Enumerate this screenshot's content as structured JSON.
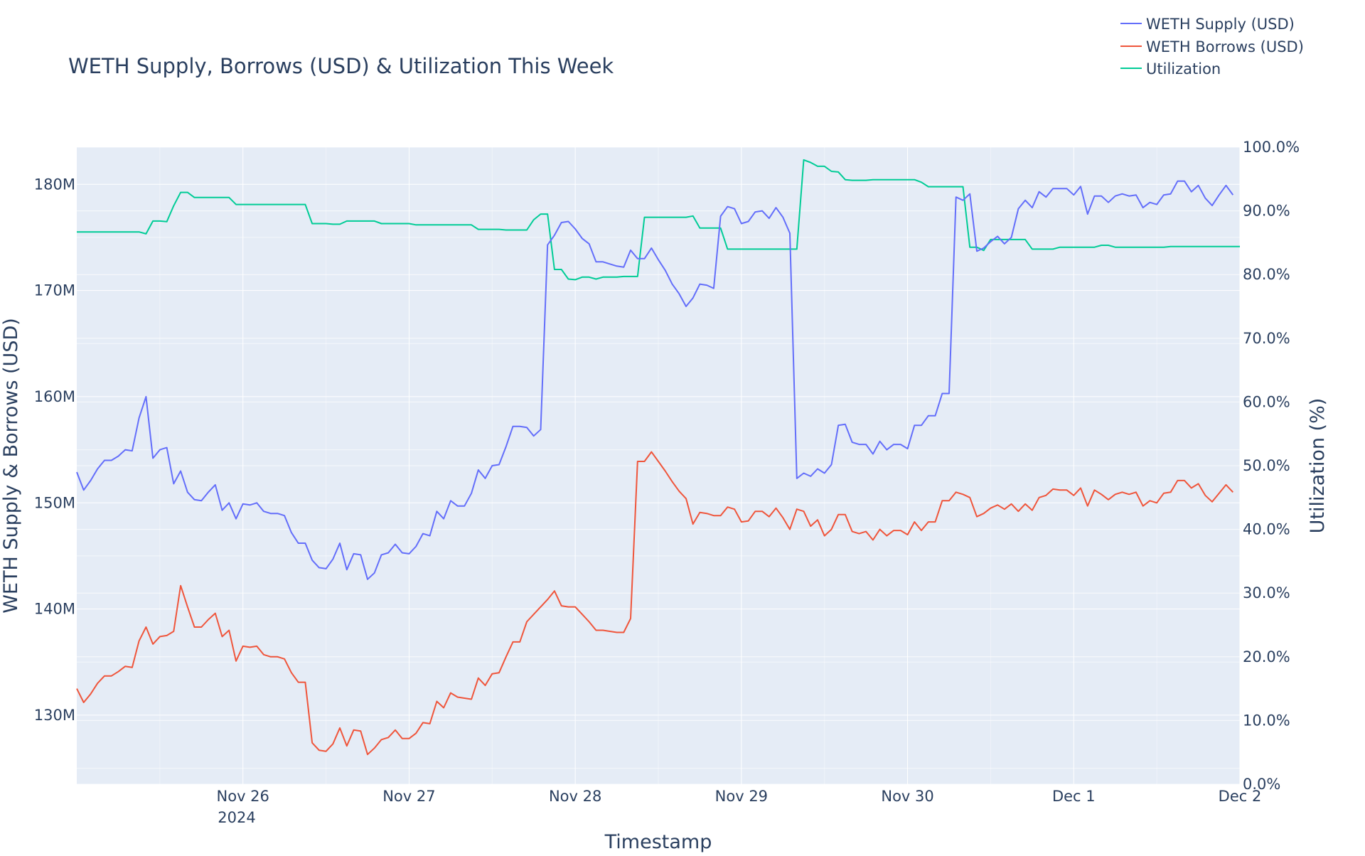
{
  "chart_data": {
    "type": "line",
    "title": "WETH Supply, Borrows (USD) & Utilization This Week",
    "xlabel": "Timestamp",
    "ylabel_left": "WETH Supply & Borrows (USD)",
    "ylabel_right": "Utilization (%)",
    "x_start": "2024-11-25T00:00",
    "x_step_hours": 1,
    "xlim": [
      "2024-11-25T00:00",
      "2024-12-02T00:00"
    ],
    "x_tick_labels": [
      "Nov 26",
      "Nov 27",
      "Nov 28",
      "Nov 29",
      "Nov 30",
      "Dec 1",
      "Dec 2"
    ],
    "x_year_label": "2024",
    "ylim_left": [
      123.5,
      183.5
    ],
    "y_left_ticks": [
      130,
      140,
      150,
      160,
      170,
      180
    ],
    "y_left_tick_labels": [
      "130M",
      "140M",
      "150M",
      "160M",
      "170M",
      "180M"
    ],
    "ylim_right": [
      0,
      100
    ],
    "y_right_ticks": [
      0,
      10,
      20,
      30,
      40,
      50,
      60,
      70,
      80,
      90,
      100
    ],
    "y_right_tick_labels": [
      "0.0%",
      "10.0%",
      "20.0%",
      "30.0%",
      "40.0%",
      "50.0%",
      "60.0%",
      "70.0%",
      "80.0%",
      "90.0%",
      "100.0%"
    ],
    "grid": true,
    "legend_position": "top-right",
    "series": [
      {
        "name": "WETH Supply (USD)",
        "color": "#636efa",
        "axis": "left",
        "unit": "M USD",
        "values": [
          152.9,
          151.2,
          152.1,
          153.2,
          154.0,
          154.0,
          154.4,
          155.0,
          154.9,
          158.0,
          160.0,
          154.2,
          155.0,
          155.2,
          151.8,
          153.0,
          151.0,
          150.3,
          150.2,
          151.0,
          151.7,
          149.3,
          150.0,
          148.5,
          149.9,
          149.8,
          150.0,
          149.2,
          149.0,
          149.0,
          148.8,
          147.2,
          146.2,
          146.2,
          144.6,
          143.9,
          143.8,
          144.7,
          146.2,
          143.7,
          145.2,
          145.1,
          142.8,
          143.4,
          145.1,
          145.3,
          146.1,
          145.3,
          145.2,
          145.9,
          147.1,
          146.9,
          149.2,
          148.5,
          150.2,
          149.7,
          149.7,
          150.9,
          153.1,
          152.3,
          153.5,
          153.6,
          155.3,
          157.2,
          157.2,
          157.1,
          156.3,
          156.9,
          174.3,
          175.2,
          176.4,
          176.5,
          175.8,
          174.9,
          174.4,
          172.7,
          172.7,
          172.5,
          172.3,
          172.2,
          173.8,
          173.0,
          173.0,
          174.0,
          172.9,
          171.9,
          170.6,
          169.7,
          168.5,
          169.3,
          170.6,
          170.5,
          170.2,
          177.0,
          177.9,
          177.7,
          176.3,
          176.5,
          177.4,
          177.5,
          176.8,
          177.8,
          176.9,
          175.4,
          152.3,
          152.8,
          152.5,
          153.2,
          152.8,
          153.6,
          157.3,
          157.4,
          155.7,
          155.5,
          155.5,
          154.6,
          155.8,
          155.0,
          155.5,
          155.5,
          155.1,
          157.3,
          157.3,
          158.2,
          158.2,
          160.3,
          160.3,
          178.8,
          178.5,
          179.1,
          173.7,
          174.0,
          174.6,
          175.1,
          174.4,
          175.0,
          177.7,
          178.5,
          177.8,
          179.3,
          178.8,
          179.6,
          179.6,
          179.6,
          179.0,
          179.8,
          177.2,
          178.9,
          178.9,
          178.3,
          178.9,
          179.1,
          178.9,
          179.0,
          177.8,
          178.3,
          178.1,
          179.0,
          179.1,
          180.3,
          180.3,
          179.3,
          179.9,
          178.7,
          178.0,
          179.0,
          179.9,
          179.0
        ]
      },
      {
        "name": "WETH Borrows (USD)",
        "color": "#ef553b",
        "axis": "left",
        "unit": "M USD",
        "values": [
          132.5,
          131.2,
          132.0,
          133.0,
          133.7,
          133.7,
          134.1,
          134.6,
          134.5,
          137.0,
          138.3,
          136.7,
          137.4,
          137.5,
          137.9,
          142.2,
          140.2,
          138.3,
          138.3,
          139.0,
          139.6,
          137.4,
          138.0,
          135.1,
          136.5,
          136.4,
          136.5,
          135.7,
          135.5,
          135.5,
          135.3,
          134.0,
          133.1,
          133.1,
          127.4,
          126.7,
          126.6,
          127.3,
          128.8,
          127.1,
          128.6,
          128.5,
          126.3,
          126.9,
          127.7,
          127.9,
          128.6,
          127.8,
          127.8,
          128.3,
          129.3,
          129.2,
          131.3,
          130.7,
          132.1,
          131.7,
          131.6,
          131.5,
          133.5,
          132.8,
          133.9,
          134.0,
          135.5,
          136.9,
          136.9,
          138.8,
          139.5,
          140.2,
          140.9,
          141.7,
          140.3,
          140.2,
          140.2,
          139.5,
          138.8,
          138.0,
          138.0,
          137.9,
          137.8,
          137.8,
          139.1,
          153.9,
          153.9,
          154.8,
          153.9,
          153.0,
          152.0,
          151.1,
          150.4,
          148.0,
          149.1,
          149.0,
          148.8,
          148.8,
          149.6,
          149.4,
          148.2,
          148.3,
          149.2,
          149.2,
          148.7,
          149.5,
          148.6,
          147.5,
          149.4,
          149.2,
          147.8,
          148.4,
          146.9,
          147.5,
          148.9,
          148.9,
          147.3,
          147.1,
          147.3,
          146.5,
          147.5,
          146.9,
          147.4,
          147.4,
          147.0,
          148.2,
          147.4,
          148.2,
          148.2,
          150.2,
          150.2,
          151.0,
          150.8,
          150.5,
          148.7,
          149.0,
          149.5,
          149.8,
          149.4,
          149.9,
          149.2,
          149.9,
          149.3,
          150.5,
          150.7,
          151.3,
          151.2,
          151.2,
          150.7,
          151.4,
          149.7,
          151.2,
          150.8,
          150.3,
          150.8,
          151.0,
          150.8,
          151.0,
          149.7,
          150.2,
          150.0,
          150.9,
          151.0,
          152.1,
          152.1,
          151.4,
          151.8,
          150.7,
          150.1,
          150.9,
          151.7,
          151.0
        ]
      },
      {
        "name": "Utilization",
        "color": "#00cc96",
        "axis": "right",
        "unit": "%",
        "values": [
          86.7,
          86.7,
          86.7,
          86.7,
          86.7,
          86.7,
          86.7,
          86.7,
          86.7,
          86.7,
          86.4,
          88.4,
          88.4,
          88.3,
          90.8,
          92.9,
          92.9,
          92.1,
          92.1,
          92.1,
          92.1,
          92.1,
          92.1,
          91.0,
          91.0,
          91.0,
          91.0,
          91.0,
          91.0,
          91.0,
          91.0,
          91.0,
          91.0,
          91.0,
          88.0,
          88.0,
          88.0,
          87.9,
          87.9,
          88.4,
          88.4,
          88.4,
          88.4,
          88.4,
          88.0,
          88.0,
          88.0,
          88.0,
          88.0,
          87.8,
          87.8,
          87.8,
          87.8,
          87.8,
          87.8,
          87.8,
          87.8,
          87.8,
          87.1,
          87.1,
          87.1,
          87.1,
          87.0,
          87.0,
          87.0,
          87.0,
          88.6,
          89.5,
          89.5,
          80.8,
          80.8,
          79.3,
          79.2,
          79.6,
          79.6,
          79.3,
          79.6,
          79.6,
          79.6,
          79.7,
          79.7,
          79.7,
          89.0,
          89.0,
          89.0,
          89.0,
          89.0,
          89.0,
          89.0,
          89.2,
          87.3,
          87.3,
          87.3,
          87.3,
          84.0,
          84.0,
          84.0,
          84.0,
          84.0,
          84.0,
          84.0,
          84.0,
          84.0,
          84.0,
          84.0,
          98.0,
          97.6,
          97.0,
          97.0,
          96.2,
          96.1,
          94.9,
          94.8,
          94.8,
          94.8,
          94.9,
          94.9,
          94.9,
          94.9,
          94.9,
          94.9,
          94.9,
          94.5,
          93.8,
          93.8,
          93.8,
          93.8,
          93.8,
          93.8,
          84.3,
          84.3,
          83.8,
          85.5,
          85.5,
          85.5,
          85.5,
          85.5,
          85.5,
          84.0,
          84.0,
          84.0,
          84.0,
          84.3,
          84.3,
          84.3,
          84.3,
          84.3,
          84.3,
          84.6,
          84.6,
          84.3,
          84.3,
          84.3,
          84.3,
          84.3,
          84.3,
          84.3,
          84.3,
          84.4,
          84.4,
          84.4,
          84.4,
          84.4,
          84.4,
          84.4,
          84.4,
          84.4,
          84.4,
          84.4
        ]
      }
    ]
  }
}
